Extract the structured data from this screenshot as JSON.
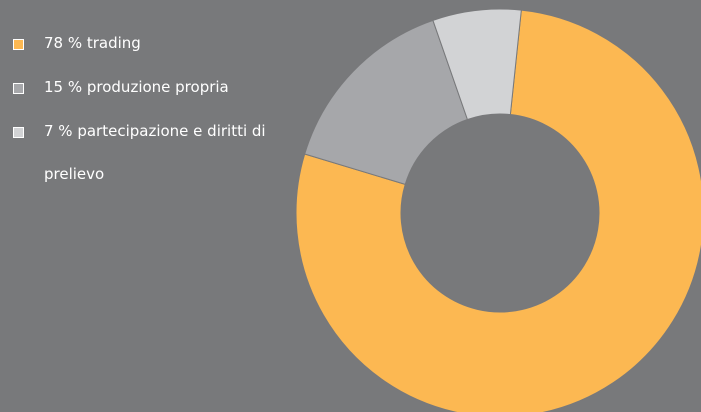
{
  "chart_data": {
    "type": "pie",
    "donut": true,
    "start_angle_deg": 6,
    "legend_position": "top-left",
    "slices": [
      {
        "label": "78 % trading",
        "value": 78,
        "color": "#fcb852"
      },
      {
        "label": "15 % produzione propria",
        "value": 15,
        "color": "#a6a7aa"
      },
      {
        "label": "7 % partecipazione e diritti di prelievo",
        "value": 7,
        "color": "#d2d3d5"
      }
    ]
  }
}
